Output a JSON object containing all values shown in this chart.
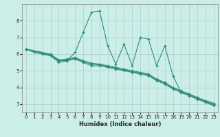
{
  "xlabel": "Humidex (Indice chaleur)",
  "background_color": "#cceee8",
  "line_color": "#2e8b7a",
  "grid_color": "#aacfca",
  "xlim": [
    -0.5,
    23.5
  ],
  "ylim": [
    2.5,
    9.0
  ],
  "yticks": [
    3,
    4,
    5,
    6,
    7,
    8
  ],
  "xticks": [
    0,
    1,
    2,
    3,
    4,
    5,
    6,
    7,
    8,
    9,
    10,
    11,
    12,
    13,
    14,
    15,
    16,
    17,
    18,
    19,
    20,
    21,
    22,
    23
  ],
  "series1_x": [
    0,
    1,
    2,
    3,
    4,
    5,
    6,
    7,
    8,
    9,
    10,
    11,
    12,
    13,
    14,
    15,
    16,
    17,
    18,
    19,
    20,
    21,
    22,
    23
  ],
  "series1_y": [
    6.3,
    6.1,
    6.0,
    5.9,
    5.6,
    5.6,
    6.1,
    7.3,
    8.5,
    8.6,
    6.5,
    5.4,
    6.6,
    5.3,
    7.0,
    6.9,
    5.3,
    6.5,
    4.7,
    3.7,
    3.5,
    3.3,
    3.1,
    2.9
  ],
  "series2_x": [
    0,
    3,
    4,
    5,
    6,
    7,
    8,
    9,
    10,
    11,
    12,
    13,
    14,
    15,
    16,
    17,
    18,
    19,
    20,
    21,
    22,
    23
  ],
  "series2_y": [
    6.3,
    5.9,
    5.5,
    5.6,
    5.7,
    5.5,
    5.3,
    5.3,
    5.2,
    5.1,
    5.0,
    4.9,
    4.8,
    4.7,
    4.4,
    4.2,
    3.9,
    3.7,
    3.5,
    3.3,
    3.1,
    2.95
  ],
  "series3_x": [
    0,
    3,
    4,
    5,
    6,
    7,
    8,
    9,
    10,
    11,
    12,
    13,
    14,
    15,
    16,
    17,
    18,
    19,
    20,
    21,
    22,
    23
  ],
  "series3_y": [
    6.3,
    5.95,
    5.6,
    5.65,
    5.75,
    5.55,
    5.4,
    5.35,
    5.25,
    5.15,
    5.05,
    4.95,
    4.85,
    4.75,
    4.45,
    4.25,
    3.95,
    3.75,
    3.55,
    3.35,
    3.15,
    3.0
  ],
  "series4_x": [
    0,
    3,
    4,
    5,
    6,
    7,
    8,
    9,
    10,
    11,
    12,
    13,
    14,
    15,
    16,
    17,
    18,
    19,
    20,
    21,
    22,
    23
  ],
  "series4_y": [
    6.3,
    6.0,
    5.65,
    5.7,
    5.8,
    5.6,
    5.45,
    5.4,
    5.3,
    5.2,
    5.1,
    5.0,
    4.9,
    4.8,
    4.5,
    4.3,
    4.0,
    3.8,
    3.6,
    3.4,
    3.2,
    3.05
  ]
}
